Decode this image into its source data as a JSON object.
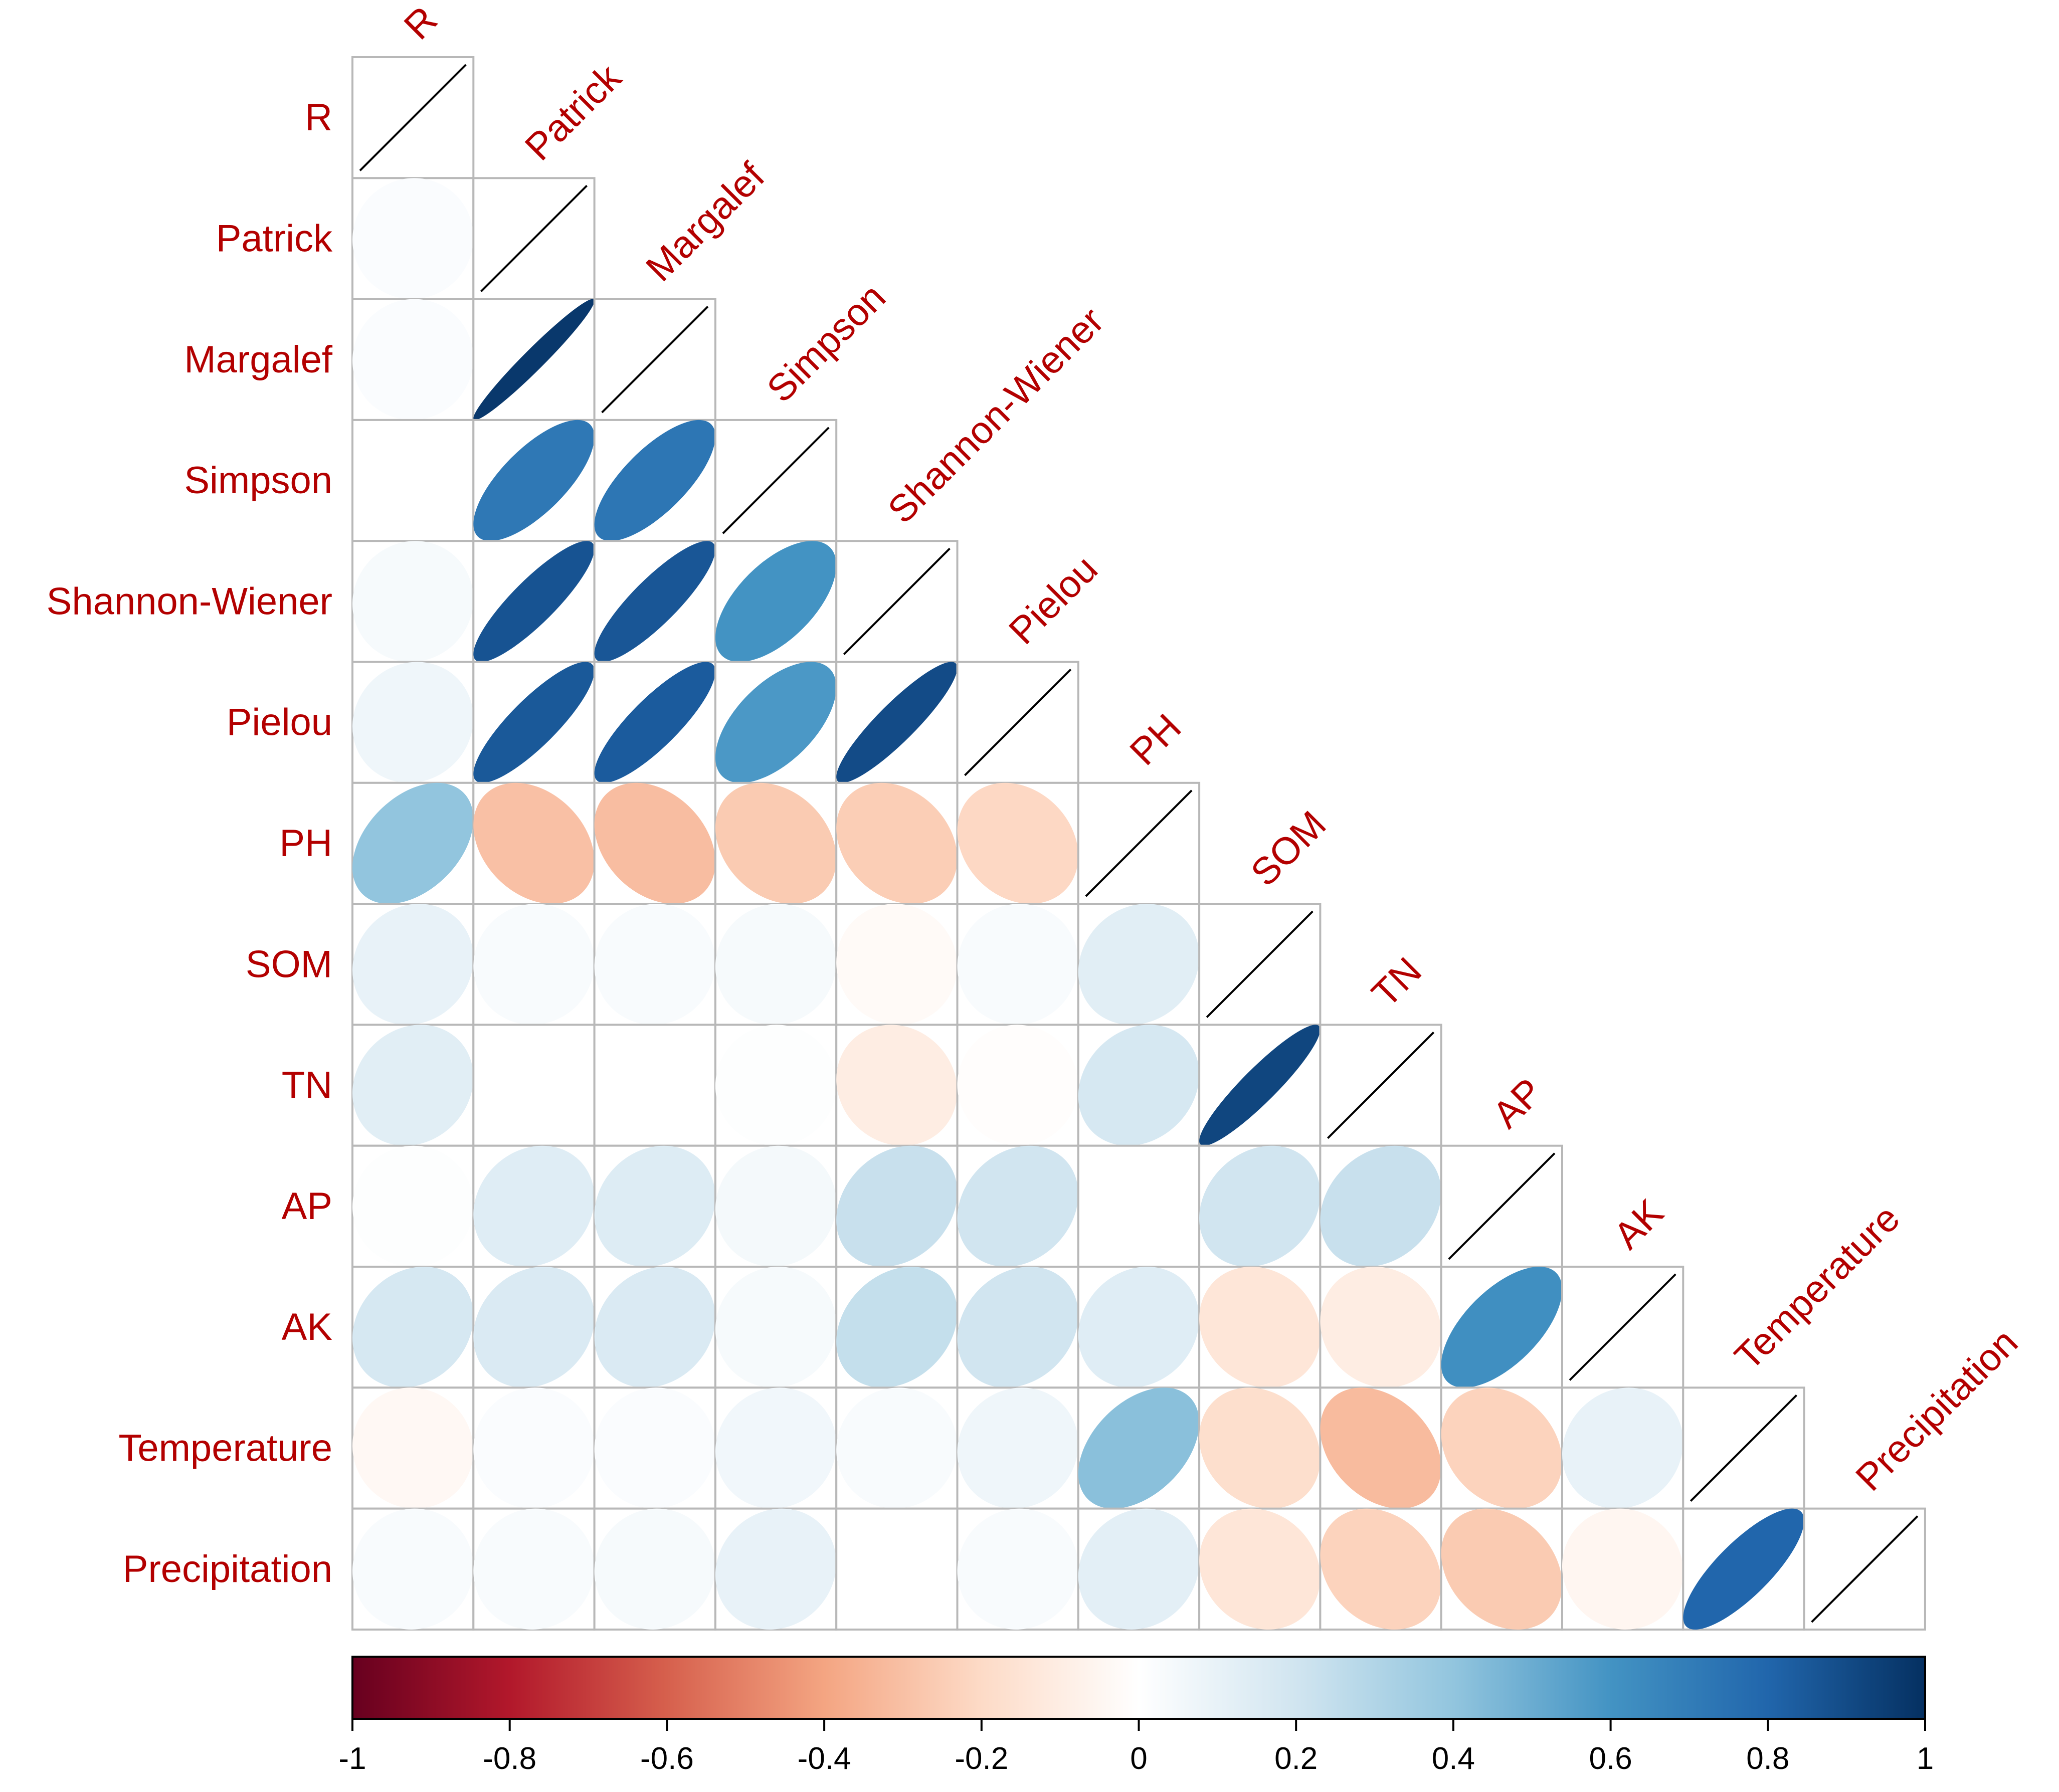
{
  "chart_data": {
    "type": "heatmap",
    "subtype": "correlation-ellipse-lower-triangle",
    "variables": [
      "R",
      "Patrick",
      "Margalef",
      "Simpson",
      "Shannon-Wiener",
      "Pielou",
      "PH",
      "SOM",
      "TN",
      "AP",
      "AK",
      "Temperature",
      "Precipitation"
    ],
    "matrix": [
      [
        1.0,
        0.02,
        0.02,
        0.0,
        0.04,
        0.07,
        0.4,
        0.1,
        0.13,
        0.01,
        0.18,
        -0.04,
        0.03
      ],
      [
        0.02,
        1.0,
        0.97,
        0.72,
        0.87,
        0.85,
        -0.3,
        0.03,
        0.0,
        0.14,
        0.16,
        0.02,
        0.03
      ],
      [
        0.02,
        0.97,
        1.0,
        0.73,
        0.86,
        0.84,
        -0.31,
        0.03,
        0.0,
        0.15,
        0.16,
        0.02,
        0.04
      ],
      [
        0.0,
        0.72,
        0.73,
        1.0,
        0.6,
        0.58,
        -0.26,
        0.04,
        0.01,
        0.05,
        0.04,
        0.06,
        0.1
      ],
      [
        0.04,
        0.87,
        0.86,
        0.6,
        1.0,
        0.9,
        -0.25,
        -0.03,
        -0.1,
        0.23,
        0.24,
        0.03,
        0.0
      ],
      [
        0.07,
        0.85,
        0.84,
        0.58,
        0.9,
        1.0,
        -0.21,
        0.03,
        -0.01,
        0.2,
        0.2,
        0.07,
        0.03
      ],
      [
        0.4,
        -0.3,
        -0.31,
        -0.26,
        -0.25,
        -0.21,
        1.0,
        0.13,
        0.18,
        0.0,
        0.14,
        0.42,
        0.12
      ],
      [
        0.1,
        0.03,
        0.03,
        0.04,
        -0.03,
        0.03,
        0.13,
        1.0,
        0.92,
        0.2,
        -0.14,
        -0.18,
        -0.14
      ],
      [
        0.13,
        0.0,
        0.0,
        0.01,
        -0.1,
        -0.01,
        0.18,
        0.92,
        1.0,
        0.23,
        -0.1,
        -0.32,
        -0.23
      ],
      [
        0.01,
        0.14,
        0.15,
        0.05,
        0.23,
        0.2,
        0.0,
        0.2,
        0.23,
        1.0,
        0.62,
        -0.23,
        -0.26
      ],
      [
        0.18,
        0.16,
        0.16,
        0.04,
        0.24,
        0.2,
        0.14,
        -0.14,
        -0.1,
        0.62,
        1.0,
        0.1,
        -0.05
      ],
      [
        -0.04,
        0.02,
        0.02,
        0.06,
        0.03,
        0.07,
        0.42,
        -0.18,
        -0.32,
        -0.23,
        0.1,
        1.0,
        0.8
      ],
      [
        0.03,
        0.03,
        0.04,
        0.1,
        0.0,
        0.03,
        0.12,
        -0.14,
        -0.23,
        -0.26,
        -0.05,
        0.8,
        1.0
      ]
    ],
    "colorbar": {
      "min": -1,
      "max": 1,
      "ticks": [
        "-1",
        "-0.8",
        "-0.6",
        "-0.4",
        "-0.2",
        "0",
        "0.2",
        "0.4",
        "0.6",
        "0.8",
        "1"
      ],
      "orientation": "horizontal",
      "placement": "bottom"
    },
    "colors": {
      "label": "#b30000",
      "negative_end": "#67001f",
      "positive_end": "#053061",
      "midpoint": "#ffffff",
      "grid": "#b8b8b8",
      "diagonal_line": "#000000"
    }
  }
}
